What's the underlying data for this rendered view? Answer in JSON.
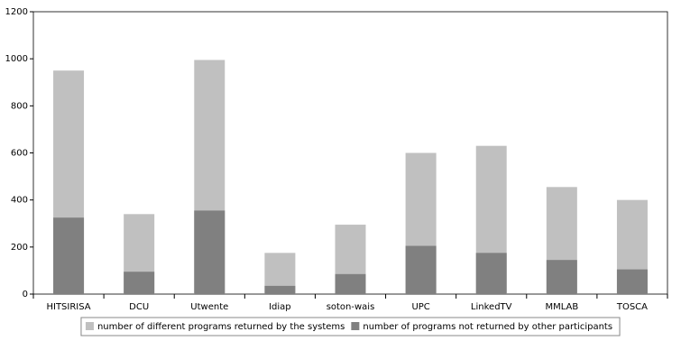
{
  "chart_data": {
    "type": "bar",
    "mode": "overlap",
    "categories": [
      "HITSIRISA",
      "DCU",
      "Utwente",
      "Idiap",
      "soton-wais",
      "UPC",
      "LinkedTV",
      "MMLAB",
      "TOSCA"
    ],
    "series": [
      {
        "name": "number of different programs returned by the systems",
        "color": "#c0c0c0",
        "values": [
          950,
          340,
          995,
          175,
          295,
          600,
          630,
          455,
          400
        ]
      },
      {
        "name": "number of programs not returned by other participants",
        "color": "#808080",
        "values": [
          325,
          95,
          355,
          35,
          85,
          205,
          175,
          145,
          105
        ]
      }
    ],
    "ylim": [
      0,
      1200
    ],
    "yticks": [
      0,
      200,
      400,
      600,
      800,
      1000,
      1200
    ],
    "grid": false,
    "legend": "bottom"
  }
}
